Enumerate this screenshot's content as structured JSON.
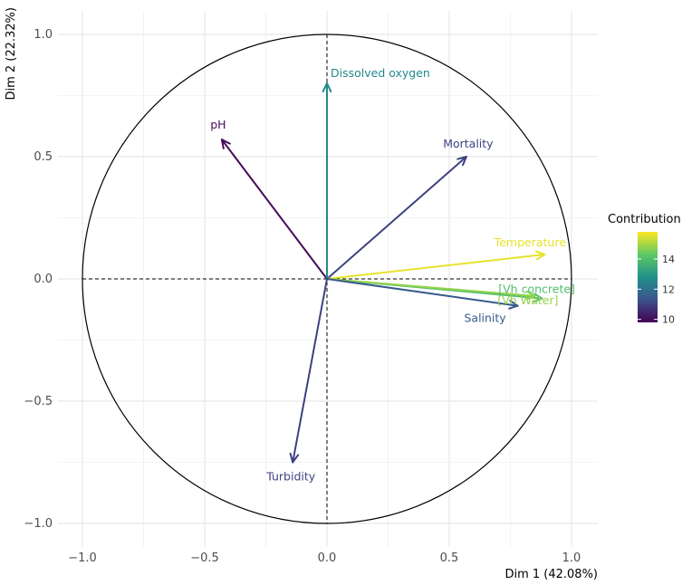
{
  "chart_data": {
    "type": "pca-variable-correlation-circle",
    "xlabel": "Dim 1 (42.08%)",
    "ylabel": "Dim 2 (22.32%)",
    "xlim": [
      -1.1,
      1.1
    ],
    "ylim": [
      -1.05,
      1.05
    ],
    "x_ticks": [
      -1.0,
      -0.5,
      0.0,
      0.5,
      1.0
    ],
    "y_ticks": [
      -1.0,
      -0.5,
      0.0,
      0.5,
      1.0
    ],
    "x_tick_labels": [
      "−1.0",
      "−0.5",
      "0.0",
      "0.5",
      "1.0"
    ],
    "y_tick_labels": [
      "−1.0",
      "−0.5",
      "0.0",
      "0.5",
      "1.0"
    ],
    "grid": true,
    "unit_circle": true,
    "variables": [
      {
        "name": "pH",
        "x": -0.43,
        "y": 0.57,
        "contribution": 10.0
      },
      {
        "name": "Dissolved oxygen",
        "x": 0.0,
        "y": 0.8,
        "contribution": 12.6
      },
      {
        "name": "Mortality",
        "x": 0.57,
        "y": 0.5,
        "contribution": 11.0
      },
      {
        "name": "Temperature",
        "x": 0.89,
        "y": 0.1,
        "contribution": 15.6
      },
      {
        "name": "[Vh concrete]",
        "x": 0.88,
        "y": -0.08,
        "contribution": 14.0
      },
      {
        "name": "[Vh Water]",
        "x": 0.85,
        "y": -0.07,
        "contribution": 14.8
      },
      {
        "name": "Salinity",
        "x": 0.78,
        "y": -0.11,
        "contribution": 11.5
      },
      {
        "name": "Turbidity",
        "x": -0.14,
        "y": -0.75,
        "contribution": 11.0
      }
    ],
    "legend": {
      "title": "Contribution",
      "position": "right",
      "min": 9.8,
      "max": 15.8,
      "ticks": [
        10,
        12,
        14
      ],
      "colormap": [
        "#440154",
        "#3b528b",
        "#21918c",
        "#5ec962",
        "#fde725"
      ]
    }
  }
}
